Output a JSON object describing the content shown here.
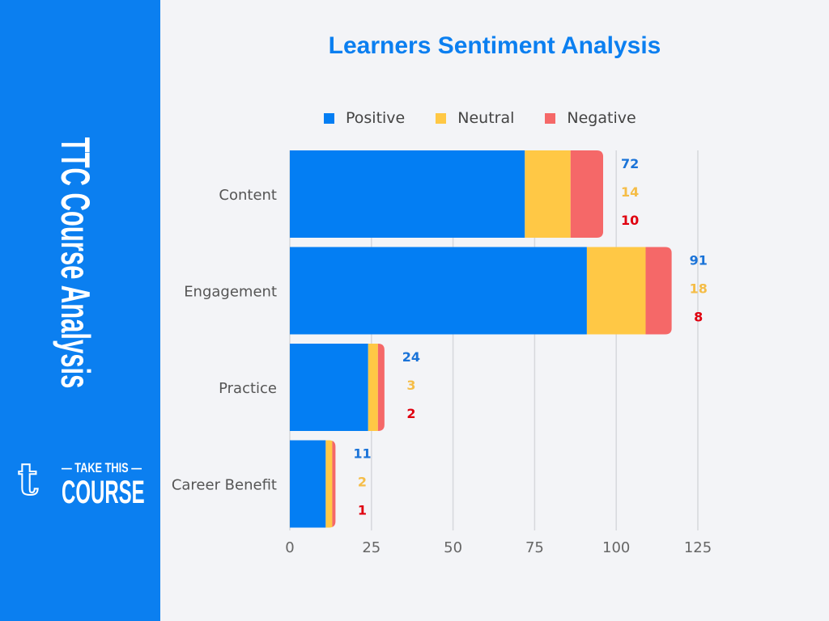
{
  "sidebar": {
    "title": "TTC Course Analysis",
    "logo_text": "TAKE THIS COURSE",
    "logo_line1": "TAKE THIS",
    "logo_line2": "COURSE"
  },
  "colors": {
    "positive": "#037ef3",
    "neutral": "#ffc845",
    "negative": "#f56868",
    "positive_label": "#1a73d8",
    "neutral_label": "#f5bd47",
    "negative_label": "#e0000f",
    "sidebar": "#0b7ff0"
  },
  "chart_data": {
    "type": "bar",
    "orientation": "horizontal",
    "stacked": true,
    "title": "Learners Sentiment Analysis",
    "categories": [
      "Content",
      "Engagement",
      "Practice",
      "Career Benefit"
    ],
    "series": [
      {
        "name": "Positive",
        "values": [
          72,
          91,
          24,
          11
        ]
      },
      {
        "name": "Neutral",
        "values": [
          14,
          18,
          3,
          2
        ]
      },
      {
        "name": "Negative",
        "values": [
          10,
          8,
          2,
          1
        ]
      }
    ],
    "xlim": [
      0,
      125
    ],
    "xticks": [
      0,
      25,
      50,
      75,
      100,
      125
    ],
    "grid": "vertical",
    "legend": "top",
    "xlabel": "",
    "ylabel": ""
  }
}
